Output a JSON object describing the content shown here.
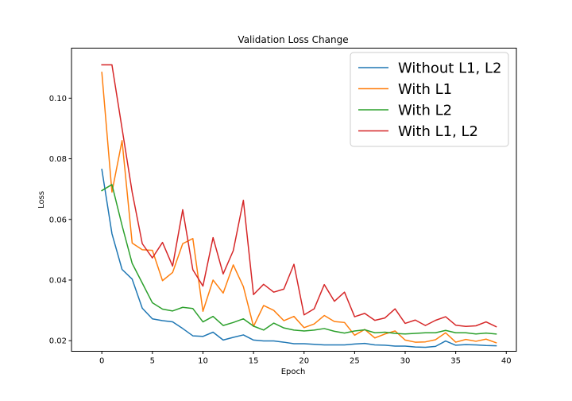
{
  "chart_data": {
    "type": "line",
    "title": "Validation Loss Change",
    "xlabel": "Epoch",
    "ylabel": "Loss",
    "xlim": [
      -3,
      41
    ],
    "ylim": [
      0.0165,
      0.1165
    ],
    "xticks": [
      0,
      5,
      10,
      15,
      20,
      25,
      30,
      35,
      40
    ],
    "yticks": [
      0.02,
      0.04,
      0.06,
      0.08,
      0.1
    ],
    "xtick_labels": [
      "0",
      "5",
      "10",
      "15",
      "20",
      "25",
      "30",
      "35",
      "40"
    ],
    "ytick_labels": [
      "0.02",
      "0.04",
      "0.06",
      "0.08",
      "0.10"
    ],
    "grid": false,
    "legend": "top-right",
    "x": [
      0,
      1,
      2,
      3,
      4,
      5,
      6,
      7,
      8,
      9,
      10,
      11,
      12,
      13,
      14,
      15,
      16,
      17,
      18,
      19,
      20,
      21,
      22,
      23,
      24,
      25,
      26,
      27,
      28,
      29,
      30,
      31,
      32,
      33,
      34,
      35,
      36,
      37,
      38,
      39
    ],
    "series": [
      {
        "name": "Without L1, L2",
        "color": "#1f77b4",
        "values": [
          0.0765,
          0.0553,
          0.0435,
          0.0403,
          0.0307,
          0.0272,
          0.0266,
          0.0262,
          0.024,
          0.0216,
          0.0214,
          0.0228,
          0.0202,
          0.0211,
          0.0219,
          0.0202,
          0.0199,
          0.0199,
          0.0195,
          0.019,
          0.019,
          0.0188,
          0.0186,
          0.0186,
          0.0186,
          0.0189,
          0.0191,
          0.0186,
          0.0185,
          0.0182,
          0.0182,
          0.0179,
          0.0178,
          0.0181,
          0.0199,
          0.0185,
          0.0187,
          0.0186,
          0.0184,
          0.0183
        ]
      },
      {
        "name": "With L1",
        "color": "#ff7f0e",
        "values": [
          0.1085,
          0.069,
          0.086,
          0.0522,
          0.05,
          0.0498,
          0.0398,
          0.0425,
          0.052,
          0.0537,
          0.0297,
          0.04,
          0.0357,
          0.045,
          0.0378,
          0.0247,
          0.0316,
          0.03,
          0.0266,
          0.028,
          0.0243,
          0.0255,
          0.0283,
          0.0263,
          0.026,
          0.0218,
          0.0237,
          0.0209,
          0.0222,
          0.0232,
          0.0202,
          0.0195,
          0.0196,
          0.0203,
          0.0226,
          0.0195,
          0.0204,
          0.0198,
          0.0205,
          0.0193
        ]
      },
      {
        "name": "With L2",
        "color": "#2ca02c",
        "values": [
          0.0695,
          0.0715,
          0.058,
          0.0455,
          0.039,
          0.0325,
          0.0304,
          0.0298,
          0.031,
          0.0306,
          0.0262,
          0.028,
          0.025,
          0.026,
          0.0272,
          0.0248,
          0.0235,
          0.0258,
          0.0242,
          0.0235,
          0.0232,
          0.0235,
          0.024,
          0.0231,
          0.0225,
          0.0232,
          0.0236,
          0.0226,
          0.0228,
          0.0224,
          0.0222,
          0.0224,
          0.0226,
          0.0226,
          0.0234,
          0.0226,
          0.0226,
          0.0222,
          0.0225,
          0.0222
        ]
      },
      {
        "name": "With L1, L2",
        "color": "#d62728",
        "values": [
          0.111,
          0.111,
          0.09,
          0.069,
          0.052,
          0.0473,
          0.0524,
          0.0446,
          0.0632,
          0.0434,
          0.038,
          0.054,
          0.042,
          0.0497,
          0.0663,
          0.0352,
          0.0386,
          0.036,
          0.037,
          0.0452,
          0.0285,
          0.0305,
          0.0385,
          0.033,
          0.036,
          0.0279,
          0.029,
          0.0267,
          0.0275,
          0.0305,
          0.0257,
          0.0268,
          0.025,
          0.0267,
          0.0279,
          0.0251,
          0.0247,
          0.0249,
          0.0262,
          0.0246
        ]
      }
    ]
  }
}
